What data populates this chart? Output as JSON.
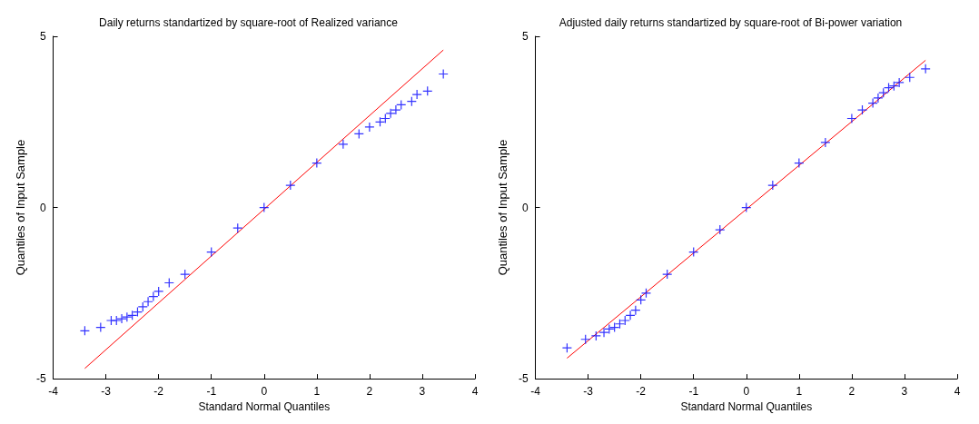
{
  "chart_data": [
    {
      "type": "scatter",
      "title": "Daily returns standartized by square-root of Realized variance",
      "xlabel": "Standard Normal Quantiles",
      "ylabel": "Quantiles of Input Sample",
      "xlim": [
        -4,
        4
      ],
      "ylim": [
        -5,
        5
      ],
      "xticks": [
        -4,
        -3,
        -2,
        -1,
        0,
        1,
        2,
        3,
        4
      ],
      "yticks": [
        -5,
        0,
        5
      ],
      "grid": false,
      "marker": "cross",
      "series": [
        {
          "color": "#0000ff",
          "x": [
            -3.4,
            -3.1,
            -2.9,
            -2.8,
            -2.7,
            -2.6,
            -2.5,
            -2.4,
            -2.3,
            -2.2,
            -2.1,
            -2.0,
            -1.8,
            -1.5,
            -1.0,
            -0.5,
            0,
            0.5,
            1.0,
            1.5,
            1.8,
            2.0,
            2.2,
            2.3,
            2.4,
            2.5,
            2.6,
            2.8,
            2.9,
            3.1,
            3.4
          ],
          "values": [
            -3.6,
            -3.5,
            -3.3,
            -3.3,
            -3.25,
            -3.2,
            -3.15,
            -3.05,
            -2.9,
            -2.75,
            -2.6,
            -2.45,
            -2.2,
            -1.95,
            -1.3,
            -0.6,
            0,
            0.65,
            1.3,
            1.85,
            2.15,
            2.35,
            2.5,
            2.6,
            2.75,
            2.85,
            3.0,
            3.1,
            3.3,
            3.4,
            3.9
          ]
        },
        {
          "type": "line",
          "marker": "none",
          "color": "#ff0000",
          "x": [
            -3.4,
            3.4
          ],
          "values": [
            -4.7,
            4.6
          ]
        }
      ]
    },
    {
      "type": "scatter",
      "title": "Adjusted daily returns standartized by square-root of Bi-power variation",
      "xlabel": "Standard Normal Quantiles",
      "ylabel": "Quantiles of Input Sample",
      "xlim": [
        -4,
        4
      ],
      "ylim": [
        -5,
        5
      ],
      "xticks": [
        -4,
        -3,
        -2,
        -1,
        0,
        1,
        2,
        3,
        4
      ],
      "yticks": [
        -5,
        0,
        5
      ],
      "grid": false,
      "marker": "cross",
      "series": [
        {
          "color": "#0000ff",
          "x": [
            -3.4,
            -3.05,
            -2.85,
            -2.7,
            -2.6,
            -2.5,
            -2.4,
            -2.3,
            -2.2,
            -2.1,
            -2.0,
            -1.9,
            -1.5,
            -1.0,
            -0.5,
            0,
            0.5,
            1.0,
            1.5,
            2.0,
            2.2,
            2.4,
            2.5,
            2.6,
            2.7,
            2.8,
            2.9,
            3.1,
            3.4
          ],
          "values": [
            -4.1,
            -3.85,
            -3.75,
            -3.65,
            -3.55,
            -3.5,
            -3.4,
            -3.3,
            -3.15,
            -3.0,
            -2.7,
            -2.5,
            -1.95,
            -1.3,
            -0.65,
            0,
            0.65,
            1.3,
            1.9,
            2.6,
            2.85,
            3.05,
            3.2,
            3.35,
            3.5,
            3.55,
            3.65,
            3.8,
            4.05
          ]
        },
        {
          "type": "line",
          "marker": "none",
          "color": "#ff0000",
          "x": [
            -3.4,
            3.4
          ],
          "values": [
            -4.4,
            4.3
          ]
        }
      ]
    }
  ]
}
